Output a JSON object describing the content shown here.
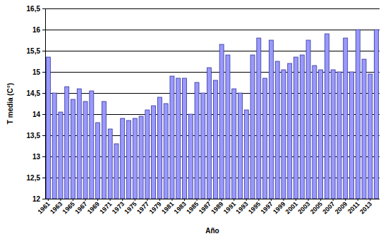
{
  "chart_data": {
    "type": "bar",
    "x_label": "Año",
    "y_label": "T media (C°)",
    "categories": [
      "1961",
      null,
      "1963",
      null,
      "1965",
      null,
      "1967",
      null,
      "1969",
      null,
      "1971",
      null,
      "1973",
      null,
      "1975",
      null,
      "1977",
      null,
      "1979",
      null,
      "1981",
      null,
      "1983",
      null,
      "1985",
      null,
      "1987",
      null,
      "1989",
      null,
      "1991",
      null,
      "1993",
      null,
      "1995",
      null,
      "1997",
      null,
      "1999",
      null,
      "2001",
      null,
      "2003",
      null,
      "2005",
      null,
      "2007",
      null,
      "2009",
      null,
      "2011",
      null,
      "2013",
      null
    ],
    "values": [
      15.35,
      14.5,
      14.05,
      14.65,
      14.35,
      14.6,
      14.3,
      14.55,
      13.8,
      14.3,
      13.65,
      13.3,
      13.9,
      13.85,
      13.9,
      13.95,
      14.1,
      14.2,
      14.4,
      14.25,
      14.9,
      14.85,
      14.85,
      14.0,
      14.75,
      14.5,
      15.1,
      14.8,
      15.65,
      15.4,
      14.6,
      14.5,
      14.1,
      15.4,
      15.8,
      14.85,
      15.75,
      15.25,
      15.05,
      15.2,
      15.35,
      15.4,
      15.75,
      15.15,
      15.05,
      15.9,
      15.05,
      15.0,
      15.8,
      15.0,
      16.0,
      15.3,
      14.95,
      16.0
    ],
    "color": "#9999ff",
    "ylim": [
      12,
      16.5
    ],
    "yticks": [
      12,
      {
        "value": 12.5,
        "label": "12,5"
      },
      13,
      {
        "value": 13.5,
        "label": "13,5"
      },
      14,
      {
        "value": 14.5,
        "label": "14,5"
      },
      15,
      {
        "value": 15.5,
        "label": "15,5"
      },
      16,
      {
        "value": 16.5,
        "label": "16,5"
      }
    ],
    "grid": true
  }
}
